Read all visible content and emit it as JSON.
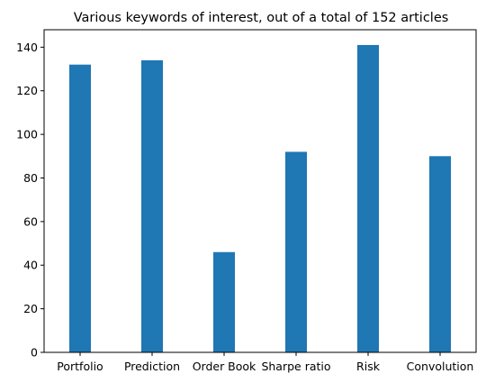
{
  "chart_data": {
    "type": "bar",
    "title": "Various keywords of interest, out of a total of 152 articles",
    "xlabel": "",
    "ylabel": "",
    "categories": [
      "Portfolio",
      "Prediction",
      "Order Book",
      "Sharpe ratio",
      "Risk",
      "Convolution"
    ],
    "values": [
      132,
      134,
      46,
      92,
      141,
      90
    ],
    "ylim": [
      0,
      148
    ],
    "yticks": [
      0,
      20,
      40,
      60,
      80,
      100,
      120,
      140
    ],
    "bar_color": "#1f77b4",
    "grid": false,
    "legend": "none"
  }
}
